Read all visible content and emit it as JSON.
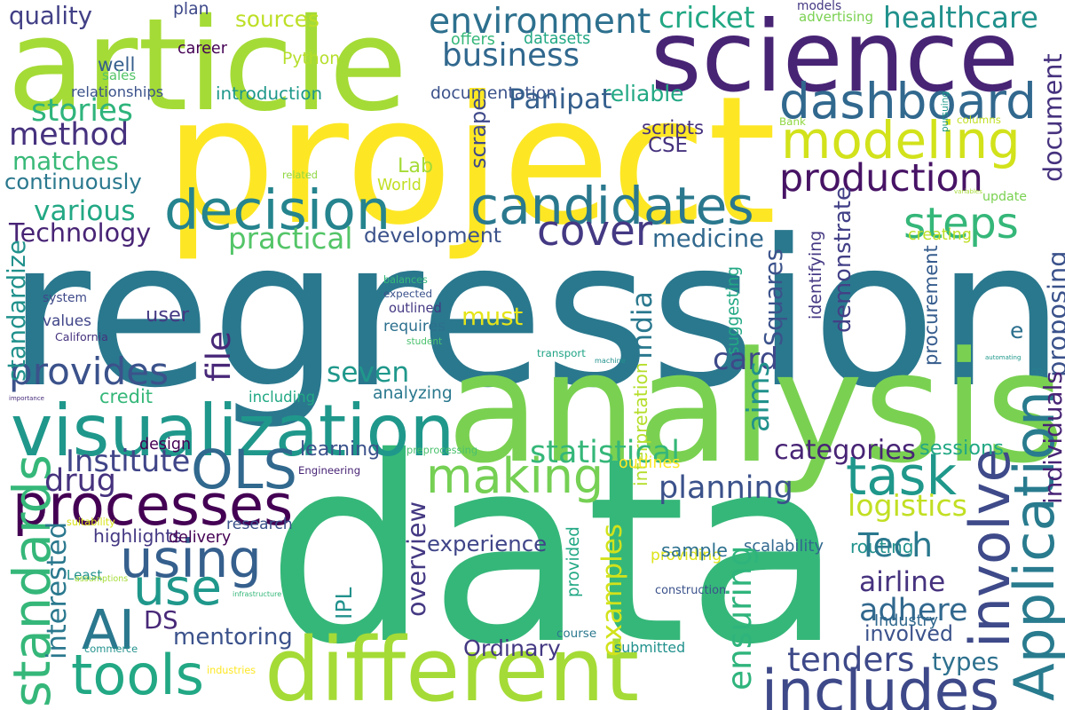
{
  "words": [
    {
      "text": "data",
      "color": "#35b779"
    },
    {
      "text": "regression",
      "color": "#2a788e"
    },
    {
      "text": "project",
      "color": "#fde725"
    },
    {
      "text": "analysis",
      "color": "#7ad151"
    },
    {
      "text": "article",
      "color": "#a5db36"
    },
    {
      "text": "science",
      "color": "#482475"
    },
    {
      "text": "different",
      "color": "#a5db36"
    },
    {
      "text": "visualization",
      "color": "#1f988b"
    },
    {
      "text": "candidates",
      "color": "#2a788e"
    },
    {
      "text": "decision",
      "color": "#25848e"
    },
    {
      "text": "modeling",
      "color": "#d2e21b"
    },
    {
      "text": "dashboard",
      "color": "#31688e"
    },
    {
      "text": "processes",
      "color": "#440154"
    },
    {
      "text": "includes",
      "color": "#3e4989"
    },
    {
      "text": "Application",
      "color": "#297b8e"
    },
    {
      "text": "involve",
      "color": "#3e4a89"
    },
    {
      "text": "production",
      "color": "#471365"
    },
    {
      "text": "cover",
      "color": "#443983"
    },
    {
      "text": "steps",
      "color": "#35b779"
    },
    {
      "text": "task",
      "color": "#1f988b"
    },
    {
      "text": "standards",
      "color": "#35b779"
    },
    {
      "text": "making",
      "color": "#75d054"
    },
    {
      "text": "OLS",
      "color": "#31688e"
    },
    {
      "text": "using",
      "color": "#355f8d"
    },
    {
      "text": "AI",
      "color": "#2a788e"
    },
    {
      "text": "tools",
      "color": "#22a884"
    },
    {
      "text": "use",
      "color": "#1f988b"
    },
    {
      "text": "provides",
      "color": "#3b528b"
    },
    {
      "text": "business",
      "color": "#31688e"
    },
    {
      "text": "environment",
      "color": "#2d708e"
    },
    {
      "text": "method",
      "color": "#46327e"
    },
    {
      "text": "healthcare",
      "color": "#21918c"
    },
    {
      "text": "cricket",
      "color": "#22a884"
    },
    {
      "text": "quality",
      "color": "#424086"
    },
    {
      "text": "sources",
      "color": "#bddf26"
    },
    {
      "text": "plan",
      "color": "#3e4989"
    },
    {
      "text": "models",
      "color": "#443983"
    },
    {
      "text": "advertising",
      "color": "#7ad151"
    },
    {
      "text": "offers",
      "color": "#35b779"
    },
    {
      "text": "datasets",
      "color": "#22a884"
    },
    {
      "text": "career",
      "color": "#440154"
    },
    {
      "text": "Python",
      "color": "#b5de2b"
    },
    {
      "text": "well",
      "color": "#355f8d"
    },
    {
      "text": "sales",
      "color": "#54c568"
    },
    {
      "text": "relationships",
      "color": "#3b528b"
    },
    {
      "text": "introduction",
      "color": "#1f988b"
    },
    {
      "text": "documentation",
      "color": "#3b528b"
    },
    {
      "text": "reliable",
      "color": "#22a884"
    },
    {
      "text": "Panipat",
      "color": "#355f8d"
    },
    {
      "text": "stories",
      "color": "#2fb47c"
    },
    {
      "text": "matches",
      "color": "#38b977"
    },
    {
      "text": "continuously",
      "color": "#2a788e"
    },
    {
      "text": "various",
      "color": "#22a884"
    },
    {
      "text": "Technology",
      "color": "#482475"
    },
    {
      "text": "practical",
      "color": "#54c568"
    },
    {
      "text": "development",
      "color": "#3b528b"
    },
    {
      "text": "medicine",
      "color": "#31688e"
    },
    {
      "text": "CSE",
      "color": "#46327e"
    },
    {
      "text": "scripts",
      "color": "#46327e"
    },
    {
      "text": "Lab",
      "color": "#a5db36"
    },
    {
      "text": "scrape",
      "color": "#3e4989"
    },
    {
      "text": "related",
      "color": "#90d743"
    },
    {
      "text": "World",
      "color": "#c2df23"
    },
    {
      "text": "Bank",
      "color": "#90d743"
    },
    {
      "text": "pursuing",
      "color": "#1f988b"
    },
    {
      "text": "columns",
      "color": "#c2df23"
    },
    {
      "text": "document",
      "color": "#46327e"
    },
    {
      "text": "update",
      "color": "#7ad151"
    },
    {
      "text": "variables",
      "color": "#a5db36"
    },
    {
      "text": "creating",
      "color": "#bddf26"
    },
    {
      "text": "identifying",
      "color": "#443983"
    },
    {
      "text": "demonstrate",
      "color": "#424086"
    },
    {
      "text": "proposing",
      "color": "#3b528b"
    },
    {
      "text": "procurement",
      "color": "#365c8d"
    },
    {
      "text": "B",
      "color": "#287d8e"
    },
    {
      "text": "e",
      "color": "#2d708e"
    },
    {
      "text": "automating",
      "color": "#1f988b"
    },
    {
      "text": "India",
      "color": "#2a788e"
    },
    {
      "text": "suggesting",
      "color": "#22a884"
    },
    {
      "text": "Squares",
      "color": "#3b528b"
    },
    {
      "text": "balances",
      "color": "#35b779"
    },
    {
      "text": "expected",
      "color": "#3b528b"
    },
    {
      "text": "outlined",
      "color": "#443983"
    },
    {
      "text": "requires",
      "color": "#2d708e"
    },
    {
      "text": "must",
      "color": "#e5e419"
    },
    {
      "text": "system",
      "color": "#3e4989"
    },
    {
      "text": "values",
      "color": "#404588"
    },
    {
      "text": "user",
      "color": "#443983"
    },
    {
      "text": "California",
      "color": "#46327e"
    },
    {
      "text": "standardize",
      "color": "#21918c"
    },
    {
      "text": "file",
      "color": "#482878"
    },
    {
      "text": "student",
      "color": "#4ac16d"
    },
    {
      "text": "seven",
      "color": "#1f988b"
    },
    {
      "text": "transport",
      "color": "#20a486"
    },
    {
      "text": "card",
      "color": "#3e4989"
    },
    {
      "text": "machine",
      "color": "#21918c"
    },
    {
      "text": "aims",
      "color": "#21918c"
    },
    {
      "text": "credit",
      "color": "#35b779"
    },
    {
      "text": "importance",
      "color": "#472c7a"
    },
    {
      "text": "including",
      "color": "#22a884"
    },
    {
      "text": "analyzing",
      "color": "#2a788e"
    },
    {
      "text": "interpretation",
      "color": "#b5de2b"
    },
    {
      "text": "individuals",
      "color": "#482475"
    },
    {
      "text": "design",
      "color": "#440154"
    },
    {
      "text": "learning",
      "color": "#3b528b"
    },
    {
      "text": "preprocessing",
      "color": "#4ac16d"
    },
    {
      "text": "statistical",
      "color": "#35b779"
    },
    {
      "text": "categories",
      "color": "#482475"
    },
    {
      "text": "sessions",
      "color": "#22a884"
    },
    {
      "text": "outlines",
      "color": "#fde725"
    },
    {
      "text": "Institute",
      "color": "#404588"
    },
    {
      "text": "drug",
      "color": "#46327e"
    },
    {
      "text": "Engineering",
      "color": "#482475"
    },
    {
      "text": "planning",
      "color": "#3b528b"
    },
    {
      "text": "logistics",
      "color": "#c2df23"
    },
    {
      "text": "interested",
      "color": "#2a788e"
    },
    {
      "text": "suitability",
      "color": "#d8e219"
    },
    {
      "text": "research",
      "color": "#3b528b"
    },
    {
      "text": "highlights",
      "color": "#443983"
    },
    {
      "text": "delivery",
      "color": "#440154"
    },
    {
      "text": "overview",
      "color": "#443983"
    },
    {
      "text": "provided",
      "color": "#22a884"
    },
    {
      "text": "experience",
      "color": "#404588"
    },
    {
      "text": "examples",
      "color": "#d2e21b"
    },
    {
      "text": "providing",
      "color": "#dde318"
    },
    {
      "text": "scalability",
      "color": "#31688e"
    },
    {
      "text": "routing",
      "color": "#21918c"
    },
    {
      "text": "Tech",
      "color": "#2a788e"
    },
    {
      "text": "sample",
      "color": "#2d708e"
    },
    {
      "text": "Least",
      "color": "#21918c"
    },
    {
      "text": "assumptions",
      "color": "#a5db36"
    },
    {
      "text": "IPL",
      "color": "#21918c"
    },
    {
      "text": "infrastructure",
      "color": "#35b779"
    },
    {
      "text": "ensuring",
      "color": "#2fb47c"
    },
    {
      "text": "airline",
      "color": "#46327e"
    },
    {
      "text": "adhere",
      "color": "#31688e"
    },
    {
      "text": "construction",
      "color": "#3b528b"
    },
    {
      "text": "DS",
      "color": "#482878"
    },
    {
      "text": "course",
      "color": "#2a788e"
    },
    {
      "text": "involved",
      "color": "#3b528b"
    },
    {
      "text": "Industry",
      "color": "#31688e"
    },
    {
      "text": "mentoring",
      "color": "#3b528b"
    },
    {
      "text": "commerce",
      "color": "#21918c"
    },
    {
      "text": "Ordinary",
      "color": "#443983"
    },
    {
      "text": "submitted",
      "color": "#21918c"
    },
    {
      "text": "tenders",
      "color": "#3e4989"
    },
    {
      "text": "types",
      "color": "#2d708e"
    },
    {
      "text": "industries",
      "color": "#fde725"
    }
  ]
}
